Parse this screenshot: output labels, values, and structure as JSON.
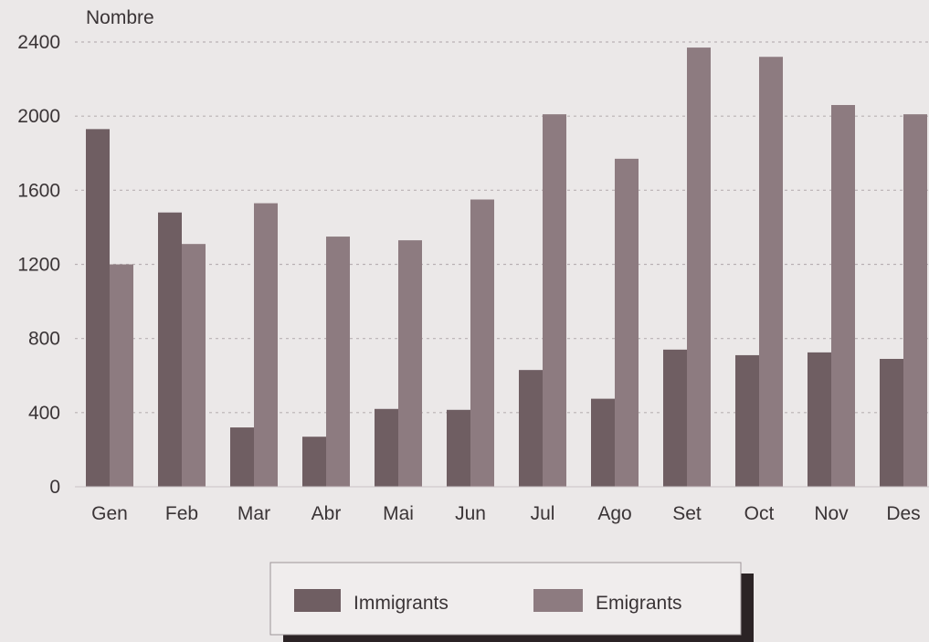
{
  "chart_data": {
    "type": "bar",
    "title": "",
    "ylabel": "Nombre",
    "xlabel": "",
    "ylim": [
      0,
      2400
    ],
    "yticks": [
      0,
      400,
      800,
      1200,
      1600,
      2000,
      2400
    ],
    "grid": "horizontal dashed",
    "legend_position": "bottom-center",
    "categories": [
      "Gen",
      "Feb",
      "Mar",
      "Abr",
      "Mai",
      "Jun",
      "Jul",
      "Ago",
      "Set",
      "Oct",
      "Nov",
      "Des"
    ],
    "series": [
      {
        "name": "Immigrants",
        "color": "#6f5e62",
        "values": [
          1930,
          1480,
          320,
          270,
          420,
          415,
          630,
          475,
          740,
          710,
          725,
          690
        ]
      },
      {
        "name": "Emigrants",
        "color": "#8d7b80",
        "values": [
          1200,
          1310,
          1530,
          1350,
          1330,
          1550,
          2010,
          1770,
          2370,
          2320,
          2060,
          2010
        ]
      }
    ]
  }
}
